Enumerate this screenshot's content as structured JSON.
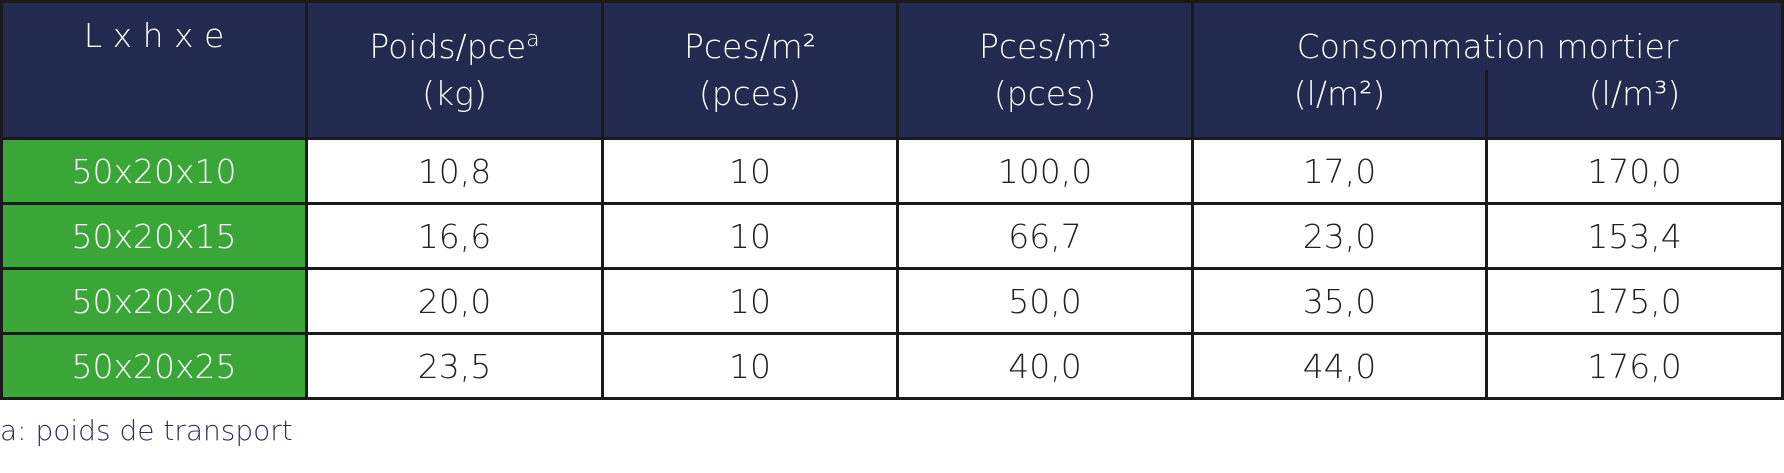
{
  "table": {
    "header": {
      "size": "L x h x e",
      "weight": {
        "title": "Poids/pce",
        "note": "a",
        "unit": "(kg)"
      },
      "per_m2": {
        "title": "Pces/m²",
        "unit": "(pces)"
      },
      "per_m3": {
        "title": "Pces/m³",
        "unit": "(pces)"
      },
      "mortar": {
        "title": "Consommation mortier",
        "units": [
          "(l/m²)",
          "(l/m³)"
        ]
      }
    },
    "rows": [
      [
        "50x20x10",
        "10,8",
        "10",
        "100,0",
        "17,0",
        "170,0"
      ],
      [
        "50x20x15",
        "16,6",
        "10",
        "66,7",
        "23,0",
        "153,4"
      ],
      [
        "50x20x20",
        "20,0",
        "10",
        "50,0",
        "35,0",
        "175,0"
      ],
      [
        "50x20x25",
        "23,5",
        "10",
        "40,0",
        "44,0",
        "176,0"
      ]
    ]
  },
  "footnote": "a: poids de transport"
}
